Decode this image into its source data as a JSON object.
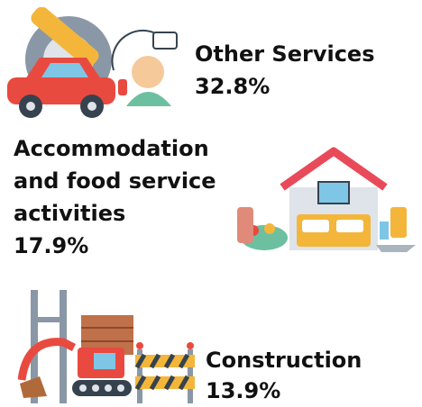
{
  "items": [
    {
      "label": "Other Services",
      "value": "32.8%"
    },
    {
      "label": "Accommodation and food service activities",
      "value": "17.9%"
    },
    {
      "label": "Construction",
      "value": "13.9%"
    }
  ]
}
